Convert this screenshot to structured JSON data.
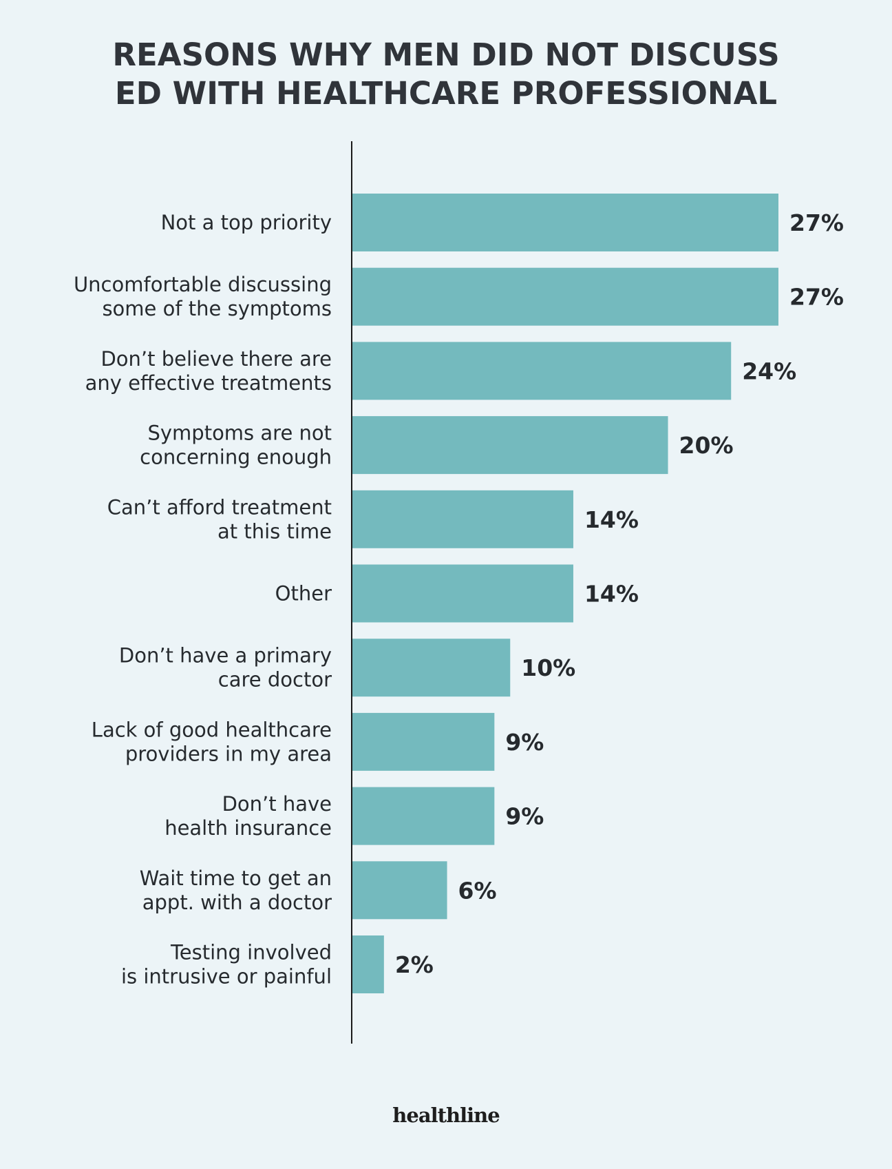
{
  "title_lines": [
    "REASONS WHY MEN DID NOT DISCUSS",
    "ED WITH HEALTHCARE PROFESSIONAL"
  ],
  "brand": "healthline",
  "colors": {
    "background": "#ecf4f7",
    "bar": "#74babe",
    "text": "#262a2e"
  },
  "chart_data": {
    "type": "bar",
    "orientation": "horizontal",
    "title": "REASONS WHY MEN DID NOT DISCUSS ED WITH HEALTHCARE PROFESSIONAL",
    "categories": [
      [
        "Not a top priority"
      ],
      [
        "Uncomfortable discussing",
        "some of the symptoms"
      ],
      [
        "Don’t believe there are",
        "any effective treatments"
      ],
      [
        "Symptoms are not",
        "concerning enough"
      ],
      [
        "Can’t afford treatment",
        "at this time"
      ],
      [
        "Other"
      ],
      [
        "Don’t have a primary",
        "care doctor"
      ],
      [
        "Lack of good healthcare",
        "providers in my area"
      ],
      [
        "Don’t have",
        "health insurance"
      ],
      [
        "Wait time to get an",
        "appt. with a doctor"
      ],
      [
        "Testing involved",
        "is intrusive or painful"
      ]
    ],
    "values": [
      27,
      27,
      24,
      20,
      14,
      14,
      10,
      9,
      9,
      6,
      2
    ],
    "value_labels": [
      "27%",
      "27%",
      "24%",
      "20%",
      "14%",
      "14%",
      "10%",
      "9%",
      "9%",
      "6%",
      "2%"
    ],
    "unit": "%",
    "xlim": [
      0,
      27
    ],
    "grid": false,
    "legend": "none"
  }
}
